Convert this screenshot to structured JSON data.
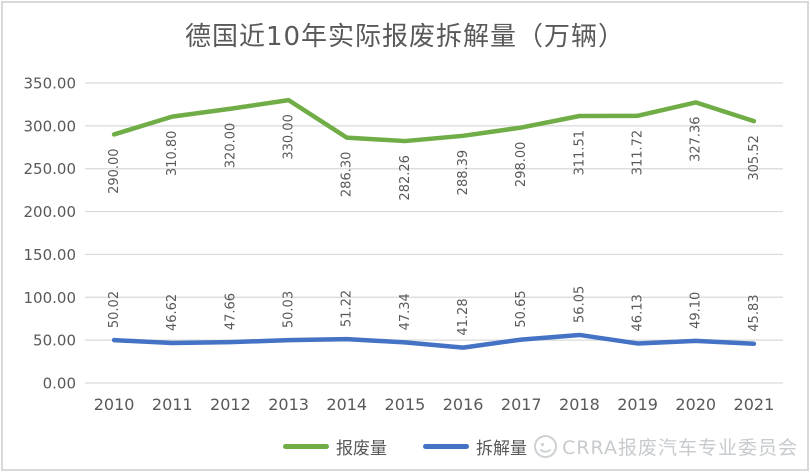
{
  "chart_data": {
    "type": "line",
    "title": "德国近10年实际报废拆解量（万辆）",
    "categories": [
      "2010",
      "2011",
      "2012",
      "2013",
      "2014",
      "2015",
      "2016",
      "2017",
      "2018",
      "2019",
      "2020",
      "2021"
    ],
    "series": [
      {
        "name": "报废量",
        "color": "#70AD47",
        "label_position": "below",
        "values": [
          290.0,
          310.8,
          320.0,
          330.0,
          286.3,
          282.26,
          288.39,
          298.0,
          311.51,
          311.72,
          327.36,
          305.52
        ]
      },
      {
        "name": "拆解量",
        "color": "#4472C4",
        "label_position": "above",
        "values": [
          50.02,
          46.62,
          47.66,
          50.03,
          51.22,
          47.34,
          41.28,
          50.65,
          56.05,
          46.13,
          49.1,
          45.83
        ]
      }
    ],
    "ylim": [
      0,
      350
    ],
    "ytick_labels": [
      "0.00",
      "50.00",
      "100.00",
      "150.00",
      "200.00",
      "250.00",
      "300.00",
      "350.00"
    ],
    "xlabel": "",
    "ylabel": "",
    "grid": true,
    "legend_position": "bottom",
    "value_label_format": "0.00",
    "grid_color": "#D9D9D9",
    "axis_color": "#595959",
    "label_color": "#595959"
  },
  "watermark": {
    "text": "CRRA报废汽车专业委员会"
  }
}
